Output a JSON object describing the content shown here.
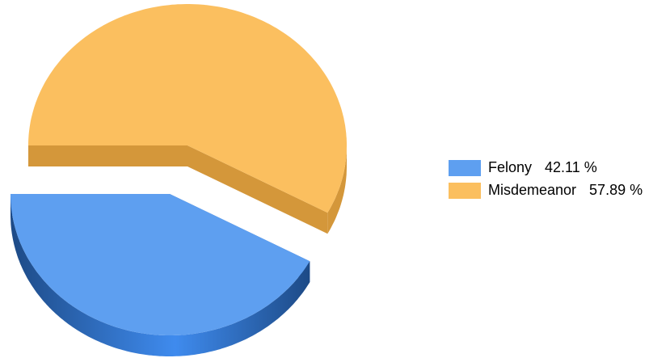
{
  "chart_data": {
    "type": "pie",
    "categories": [
      "Felony",
      "Misdemeanor"
    ],
    "values": [
      42.11,
      57.89
    ],
    "value_labels": [
      "42.11 %",
      "57.89 %"
    ],
    "colors": [
      "#5e9ff0",
      "#fbbf5f"
    ],
    "side_colors": [
      "#2d69bd",
      "#d4973a"
    ]
  }
}
